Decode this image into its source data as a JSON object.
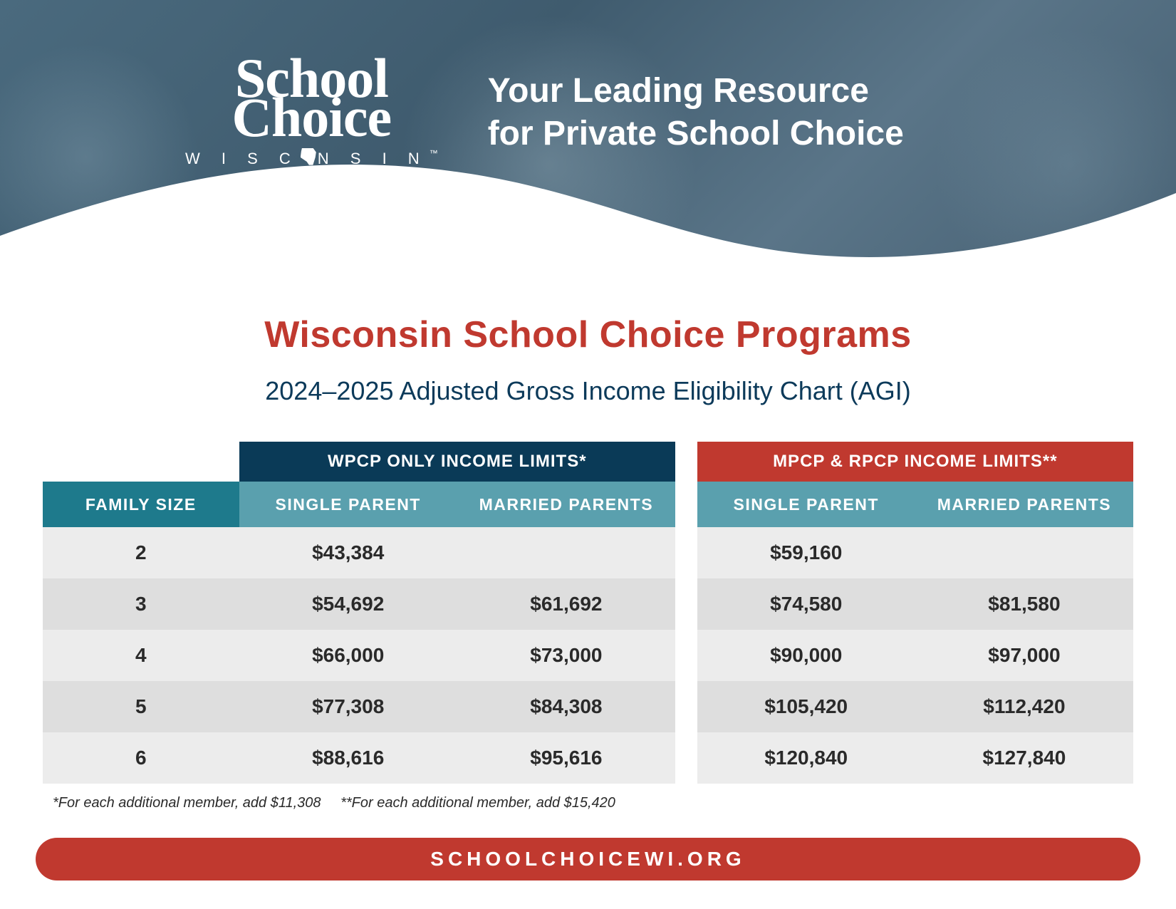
{
  "colors": {
    "red": "#c0392f",
    "deep_navy": "#0a3a57",
    "navy_text": "#0c3a5a",
    "teal_dark": "#1e7a8c",
    "teal_light": "#5aa0ae",
    "row_light": "#ececec",
    "row_dark": "#dedede",
    "white": "#ffffff",
    "body_text": "#2a2a2a"
  },
  "banner": {
    "logo_line1": "School",
    "logo_line2": "Choice",
    "logo_sub_before": "W I S C",
    "logo_sub_after": "N S I N",
    "tagline_line1": "Your Leading Resource",
    "tagline_line2": "for Private School Choice"
  },
  "titles": {
    "main": "Wisconsin School Choice Programs",
    "sub": "2024–2025 Adjusted Gross Income Eligibility Chart (AGI)"
  },
  "table": {
    "super_headers": {
      "left": "WPCP ONLY INCOME LIMITS*",
      "right": "MPCP & RPCP INCOME LIMITS**"
    },
    "columns": {
      "family": "FAMILY SIZE",
      "single": "SINGLE PARENT",
      "married": "MARRIED PARENTS"
    },
    "rows": [
      {
        "size": "2",
        "wpcp_single": "$43,384",
        "wpcp_married": "",
        "mpcp_single": "$59,160",
        "mpcp_married": ""
      },
      {
        "size": "3",
        "wpcp_single": "$54,692",
        "wpcp_married": "$61,692",
        "mpcp_single": "$74,580",
        "mpcp_married": "$81,580"
      },
      {
        "size": "4",
        "wpcp_single": "$66,000",
        "wpcp_married": "$73,000",
        "mpcp_single": "$90,000",
        "mpcp_married": "$97,000"
      },
      {
        "size": "5",
        "wpcp_single": "$77,308",
        "wpcp_married": "$84,308",
        "mpcp_single": "$105,420",
        "mpcp_married": "$112,420"
      },
      {
        "size": "6",
        "wpcp_single": "$88,616",
        "wpcp_married": "$95,616",
        "mpcp_single": "$120,840",
        "mpcp_married": "$127,840"
      }
    ],
    "footnotes": {
      "a": "*For each additional member, add $11,308",
      "b": "**For each additional member, add $15,420"
    }
  },
  "footer": {
    "url": "SCHOOLCHOICEWI.ORG"
  }
}
